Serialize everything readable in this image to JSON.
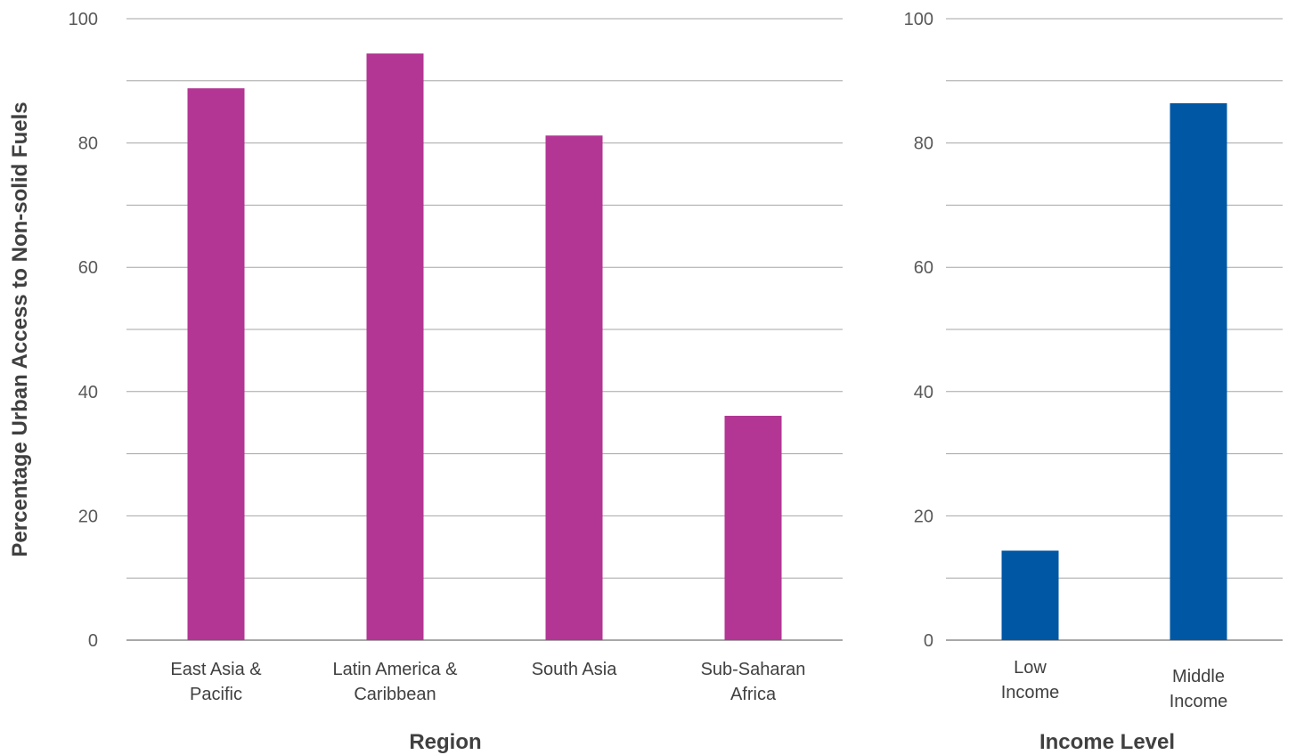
{
  "chart_data": [
    {
      "type": "bar",
      "categories": [
        [
          "East Asia &",
          "Pacific"
        ],
        [
          "Latin America &",
          "Caribbean"
        ],
        [
          "South Asia"
        ],
        [
          "Sub-Saharan",
          "Africa"
        ]
      ],
      "values": [
        88.8,
        94.4,
        81.2,
        36.1
      ],
      "xlabel": "Region",
      "ylabel": "Percentage Urban Access to Non-solid Fuels",
      "ylim": [
        0,
        100
      ],
      "yticks": [
        0,
        20,
        40,
        60,
        80,
        100
      ],
      "grid": true,
      "color": "#B33594"
    },
    {
      "type": "bar",
      "categories": [
        [
          "Low",
          "Income"
        ],
        [
          "Middle",
          "Income"
        ]
      ],
      "values": [
        14.4,
        86.4
      ],
      "xlabel": "Income Level",
      "ylim": [
        0,
        100
      ],
      "yticks": [
        0,
        20,
        40,
        60,
        80,
        100
      ],
      "grid": true,
      "color": "#0057A4"
    }
  ]
}
